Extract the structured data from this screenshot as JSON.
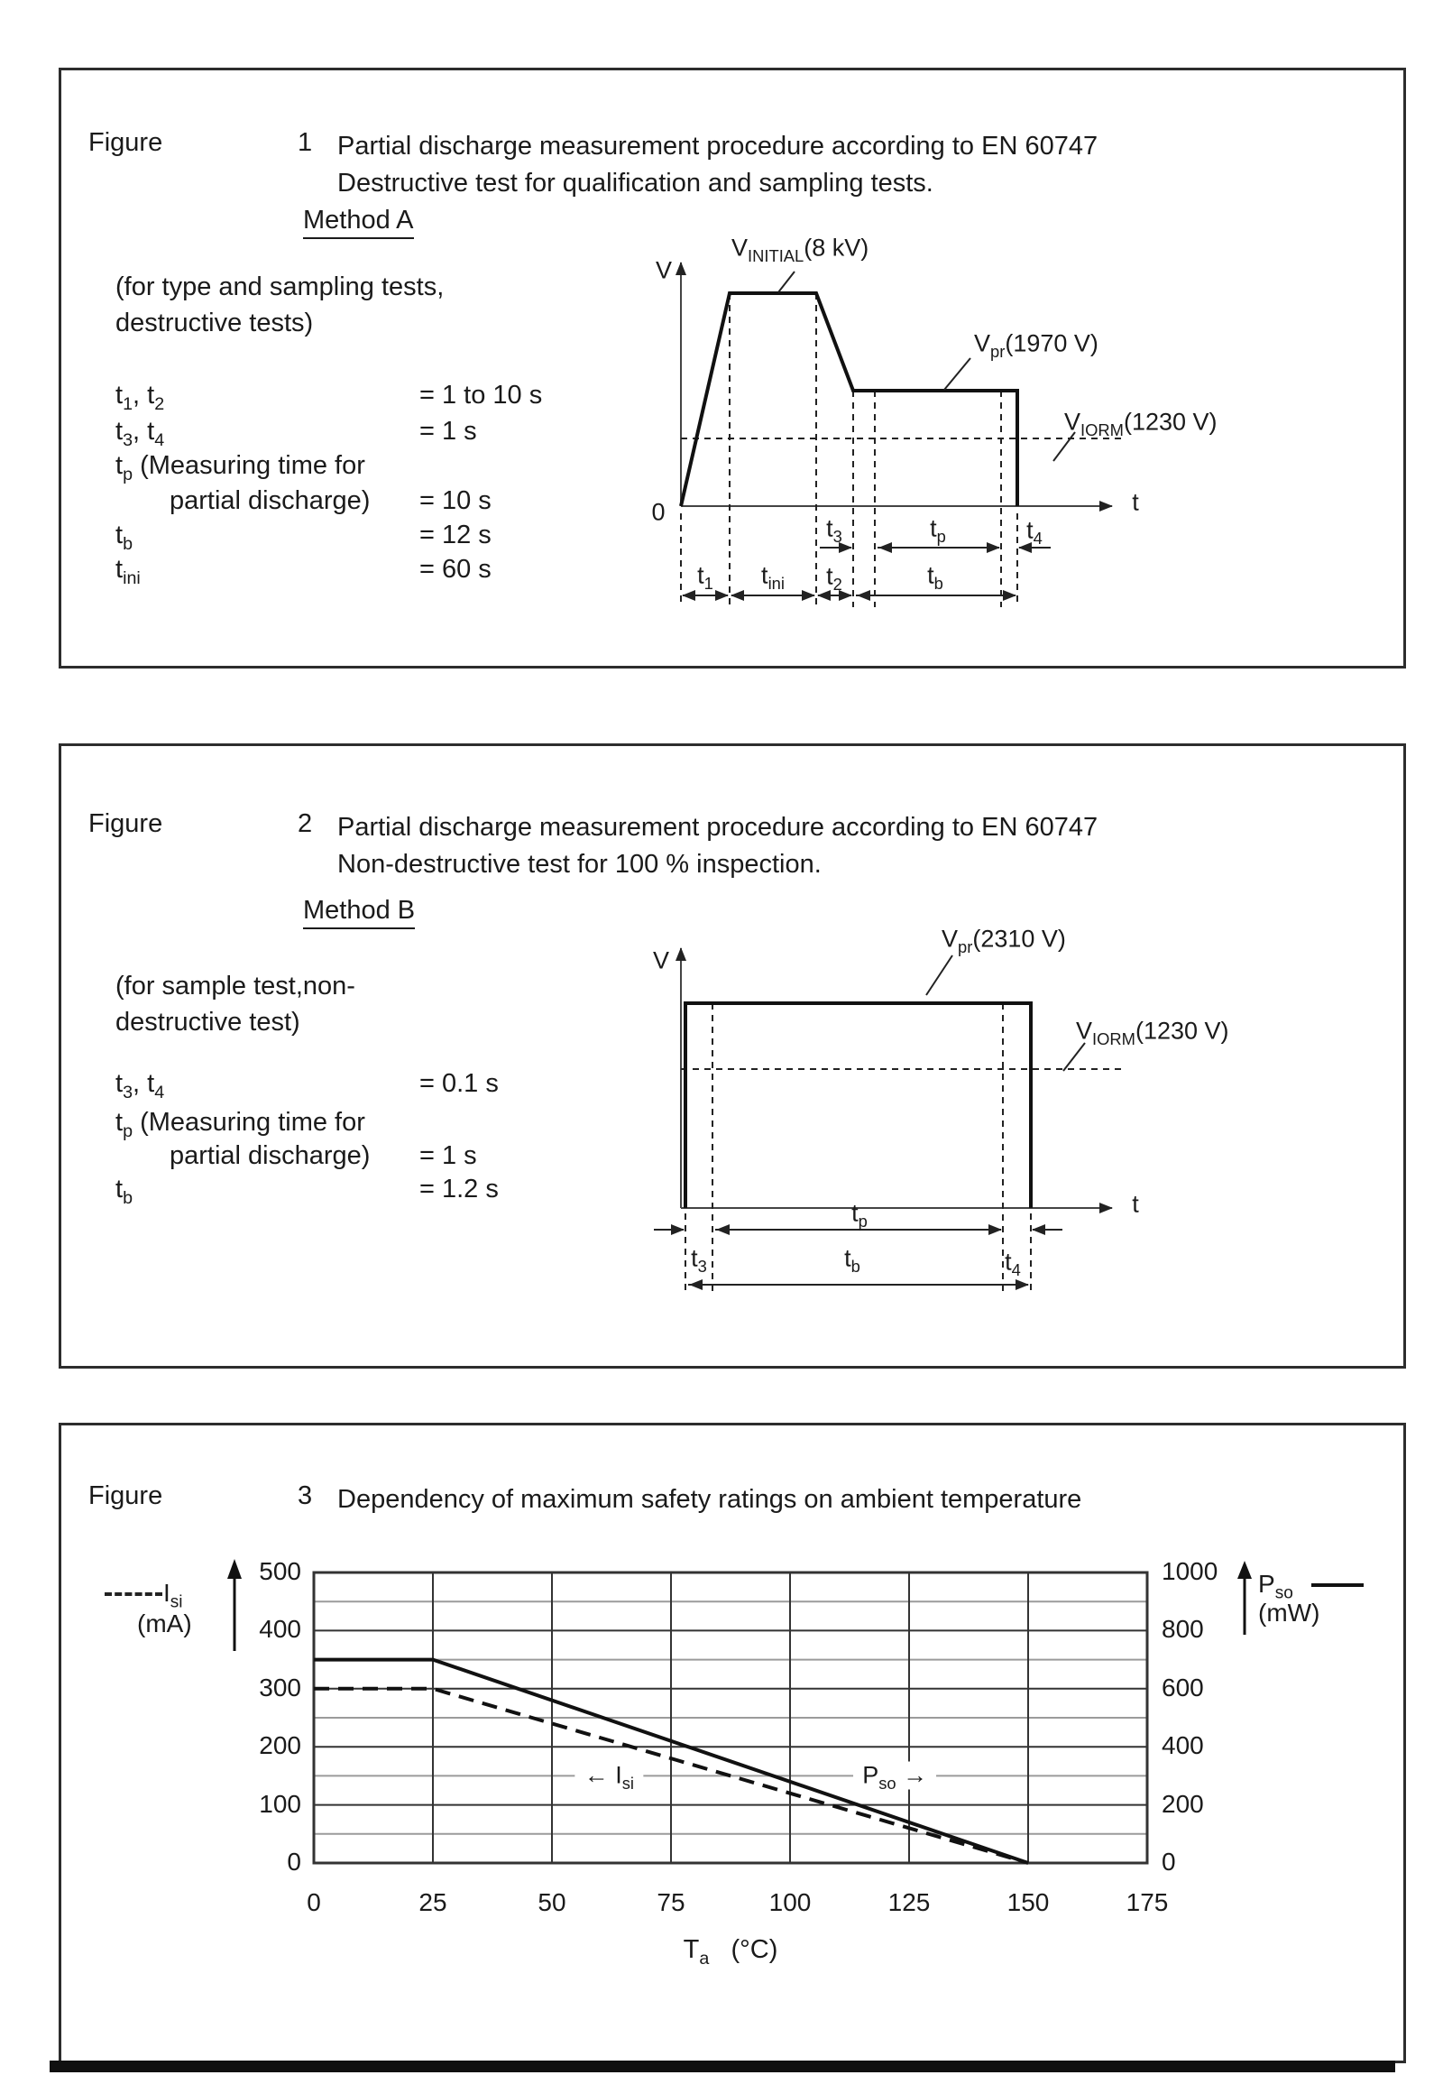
{
  "figure1": {
    "label": "Figure",
    "number": "1",
    "title_line1": "Partial discharge measurement procedure according to EN 60747",
    "title_line2": "Destructive test for qualification and sampling tests.",
    "method": "Method A",
    "condition_line1": "(for type and sampling tests,",
    "condition_line2": "destructive tests)",
    "params": [
      {
        "name": "t{1}, t{2}",
        "value": "= 1 to 10 s"
      },
      {
        "name": "t{3}, t{4}",
        "value": "= 1 s"
      },
      {
        "name": "t{p} (Measuring time for",
        "value": ""
      },
      {
        "name": "partial discharge)",
        "value": "= 10 s",
        "indent": true
      },
      {
        "name": "t{b}",
        "value": "= 12 s"
      },
      {
        "name": "t{ini}",
        "value": "= 60 s"
      }
    ],
    "diagram": {
      "v": "V",
      "t": "t",
      "zero": "0",
      "v_initial": "V{INITIAL}(8 kV)",
      "v_pr": "V{pr}(1970 V)",
      "v_iorm": "V{IORM}(1230 V)",
      "t1": "t{1}",
      "t2": "t{2}",
      "t3": "t{3}",
      "t4": "t{4}",
      "tp": "t{p}",
      "tb": "t{b}",
      "tini": "t{ini}"
    }
  },
  "figure2": {
    "label": "Figure",
    "number": "2",
    "title_line1": "Partial discharge measurement procedure according to EN 60747",
    "title_line2": "Non-destructive test for 100 % inspection.",
    "method": "Method B",
    "condition_line1": "(for sample test,non-",
    "condition_line2": "destructive test)",
    "params": [
      {
        "name": "t{3}, t{4}",
        "value": "= 0.1 s"
      },
      {
        "name": "t{p} (Measuring time for",
        "value": ""
      },
      {
        "name": "partial discharge)",
        "value": "= 1 s",
        "indent": true
      },
      {
        "name": "t{b}",
        "value": "= 1.2 s"
      }
    ],
    "diagram": {
      "v": "V",
      "t": "t",
      "v_pr": "V{pr}(2310 V)",
      "v_iorm": "V{IORM}(1230 V)",
      "t3": "t{3}",
      "t4": "t{4}",
      "tp": "t{p}",
      "tb": "t{b}"
    }
  },
  "figure3": {
    "label": "Figure",
    "number": "3",
    "title": "Dependency of maximum safety ratings on ambient temperature",
    "legend_left": {
      "line1": "I{si}",
      "line2": "(mA)"
    },
    "legend_right": {
      "line1": "P{so}",
      "line2": "(mW)"
    },
    "chart_data": {
      "type": "line",
      "title": "Dependency of maximum safety ratings on ambient temperature",
      "xlabel": "T{a}   (°C)",
      "xlim": [
        0,
        175
      ],
      "x_ticks": [
        0,
        25,
        50,
        75,
        100,
        125,
        150,
        175
      ],
      "left_axis": {
        "label": "I{si} (mA)",
        "lim": [
          0,
          500
        ],
        "ticks": [
          500,
          400,
          300,
          200,
          100,
          0
        ],
        "minor_step": 50
      },
      "right_axis": {
        "label": "P{so} (mW)",
        "lim": [
          0,
          1000
        ],
        "ticks": [
          1000,
          800,
          600,
          400,
          200,
          0
        ]
      },
      "grid": true,
      "series": [
        {
          "name": "P{so}",
          "axis": "right",
          "style": "solid",
          "x": [
            0,
            25,
            150
          ],
          "y": [
            700,
            700,
            0
          ]
        },
        {
          "name": "I{si}",
          "axis": "left",
          "style": "dashed",
          "x": [
            0,
            25,
            150
          ],
          "y": [
            300,
            300,
            0
          ]
        }
      ],
      "annotations": [
        {
          "text": "← I{si}",
          "x": 62,
          "y": 150
        },
        {
          "text": "P{so} →",
          "x": 122,
          "y": 150
        }
      ]
    }
  }
}
